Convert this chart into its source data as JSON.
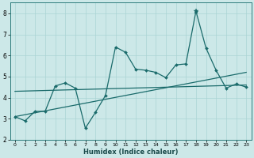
{
  "xlabel": "Humidex (Indice chaleur)",
  "bg_color": "#cce8e8",
  "grid_color": "#aad4d4",
  "line_color": "#1a6b6b",
  "xlim": [
    -0.5,
    23.5
  ],
  "ylim": [
    2,
    8.5
  ],
  "yticks": [
    2,
    3,
    4,
    5,
    6,
    7,
    8
  ],
  "xticks": [
    0,
    1,
    2,
    3,
    4,
    5,
    6,
    7,
    8,
    9,
    10,
    11,
    12,
    13,
    14,
    15,
    16,
    17,
    18,
    19,
    20,
    21,
    22,
    23
  ],
  "data_x": [
    0,
    1,
    2,
    3,
    4,
    5,
    6,
    7,
    8,
    9,
    10,
    11,
    12,
    13,
    14,
    15,
    16,
    17,
    18,
    19,
    20,
    21,
    22,
    23
  ],
  "data_y": [
    3.1,
    2.9,
    3.35,
    3.35,
    4.55,
    4.7,
    4.45,
    2.55,
    3.3,
    4.1,
    6.4,
    6.15,
    5.35,
    5.3,
    5.2,
    4.95,
    5.55,
    5.6,
    8.1,
    6.35,
    5.3,
    4.45,
    4.65,
    4.5
  ],
  "trend1_x": [
    0,
    23
  ],
  "trend1_y": [
    3.1,
    5.2
  ],
  "trend2_x": [
    0,
    23
  ],
  "trend2_y": [
    4.3,
    4.6
  ]
}
